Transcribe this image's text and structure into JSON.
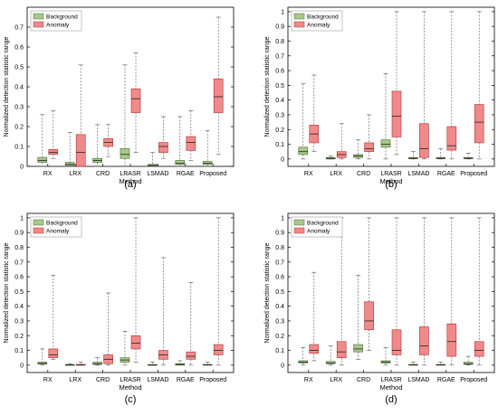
{
  "panel_order": [
    "a",
    "b",
    "c",
    "d"
  ],
  "colors": {
    "background_fill": "#a9c98b",
    "background_stroke": "#4d6b33",
    "anomaly_fill": "#f08a8a",
    "anomaly_stroke": "#b03030",
    "median": "#222222",
    "whisker": "#555555",
    "axis": "#000000"
  },
  "chart_data": [
    {
      "type": "box",
      "panel_label": "(a)",
      "xlabel": "Method",
      "ylabel": "Normalized detection statistic range",
      "ylim": [
        0,
        0.8
      ],
      "yticks": [
        "0",
        "0.1",
        "0.2",
        "0.3",
        "0.4",
        "0.5",
        "0.6",
        "0.7"
      ],
      "ytick_values": [
        0,
        0.1,
        0.2,
        0.3,
        0.4,
        0.5,
        0.6,
        0.7
      ],
      "legend": {
        "position": "top-left",
        "entries": [
          "Background",
          "Anomaly"
        ]
      },
      "categories": [
        "RX",
        "LRX",
        "CRD",
        "LRASR",
        "LSMAD",
        "RGAE",
        "Proposed"
      ],
      "series": [
        {
          "name": "Background",
          "boxes": [
            {
              "min": 0.0,
              "q1": 0.02,
              "median": 0.03,
              "q3": 0.045,
              "max": 0.26
            },
            {
              "min": 0.0,
              "q1": 0.005,
              "median": 0.01,
              "q3": 0.02,
              "max": 0.17
            },
            {
              "min": 0.0,
              "q1": 0.02,
              "median": 0.03,
              "q3": 0.04,
              "max": 0.21
            },
            {
              "min": 0.0,
              "q1": 0.04,
              "median": 0.06,
              "q3": 0.09,
              "max": 0.51
            },
            {
              "min": 0.0,
              "q1": 0.003,
              "median": 0.005,
              "q3": 0.01,
              "max": 0.07
            },
            {
              "min": 0.0,
              "q1": 0.01,
              "median": 0.015,
              "q3": 0.03,
              "max": 0.25
            },
            {
              "min": 0.0,
              "q1": 0.01,
              "median": 0.015,
              "q3": 0.025,
              "max": 0.18
            }
          ]
        },
        {
          "name": "Anomaly",
          "boxes": [
            {
              "min": 0.04,
              "q1": 0.06,
              "median": 0.07,
              "q3": 0.085,
              "max": 0.28
            },
            {
              "min": 0.0,
              "q1": 0.0,
              "median": 0.07,
              "q3": 0.16,
              "max": 0.51
            },
            {
              "min": 0.05,
              "q1": 0.1,
              "median": 0.12,
              "q3": 0.14,
              "max": 0.21
            },
            {
              "min": 0.07,
              "q1": 0.27,
              "median": 0.34,
              "q3": 0.39,
              "max": 0.57
            },
            {
              "min": 0.04,
              "q1": 0.07,
              "median": 0.1,
              "q3": 0.12,
              "max": 0.25
            },
            {
              "min": 0.03,
              "q1": 0.08,
              "median": 0.12,
              "q3": 0.15,
              "max": 0.28
            },
            {
              "min": 0.06,
              "q1": 0.27,
              "median": 0.35,
              "q3": 0.44,
              "max": 0.75
            }
          ]
        }
      ]
    },
    {
      "type": "box",
      "panel_label": "(b)",
      "xlabel": "Method",
      "ylabel": "Normalized detection statistic range",
      "ylim": [
        -0.05,
        1.03
      ],
      "yticks": [
        "0",
        "0.1",
        "0.2",
        "0.3",
        "0.4",
        "0.5",
        "0.6",
        "0.7",
        "0.8",
        "0.9",
        "1"
      ],
      "ytick_values": [
        0,
        0.1,
        0.2,
        0.3,
        0.4,
        0.5,
        0.6,
        0.7,
        0.8,
        0.9,
        1
      ],
      "legend": {
        "position": "top-left",
        "entries": [
          "Background",
          "Anomaly"
        ]
      },
      "categories": [
        "RX",
        "LRX",
        "CRD",
        "LRASR",
        "LSMAD",
        "RGAE",
        "Proposed"
      ],
      "series": [
        {
          "name": "Background",
          "boxes": [
            {
              "min": 0.0,
              "q1": 0.03,
              "median": 0.05,
              "q3": 0.08,
              "max": 0.51
            },
            {
              "min": 0.0,
              "q1": 0.0,
              "median": 0.005,
              "q3": 0.01,
              "max": 0.02
            },
            {
              "min": 0.0,
              "q1": 0.01,
              "median": 0.02,
              "q3": 0.03,
              "max": 0.13
            },
            {
              "min": 0.0,
              "q1": 0.08,
              "median": 0.1,
              "q3": 0.13,
              "max": 0.58
            },
            {
              "min": 0.0,
              "q1": 0.002,
              "median": 0.005,
              "q3": 0.01,
              "max": 0.05
            },
            {
              "min": 0.0,
              "q1": 0.002,
              "median": 0.005,
              "q3": 0.01,
              "max": 0.07
            },
            {
              "min": 0.0,
              "q1": 0.002,
              "median": 0.005,
              "q3": 0.01,
              "max": 0.04
            }
          ]
        },
        {
          "name": "Anomaly",
          "boxes": [
            {
              "min": 0.05,
              "q1": 0.11,
              "median": 0.17,
              "q3": 0.23,
              "max": 0.57
            },
            {
              "min": 0.0,
              "q1": 0.01,
              "median": 0.03,
              "q3": 0.05,
              "max": 0.24
            },
            {
              "min": 0.0,
              "q1": 0.05,
              "median": 0.07,
              "q3": 0.11,
              "max": 0.3
            },
            {
              "min": 0.03,
              "q1": 0.15,
              "median": 0.29,
              "q3": 0.46,
              "max": 1.0
            },
            {
              "min": 0.0,
              "q1": 0.01,
              "median": 0.07,
              "q3": 0.24,
              "max": 1.0
            },
            {
              "min": 0.0,
              "q1": 0.06,
              "median": 0.09,
              "q3": 0.22,
              "max": 1.0
            },
            {
              "min": 0.0,
              "q1": 0.11,
              "median": 0.25,
              "q3": 0.37,
              "max": 1.0
            }
          ]
        }
      ]
    },
    {
      "type": "box",
      "panel_label": "(c)",
      "xlabel": "Method",
      "ylabel": "Normalized detection statistic range",
      "ylim": [
        -0.05,
        1.03
      ],
      "yticks": [
        "0",
        "0.1",
        "0.2",
        "0.3",
        "0.4",
        "0.5",
        "0.6",
        "0.7",
        "0.8",
        "0.9",
        "1"
      ],
      "ytick_values": [
        0,
        0.1,
        0.2,
        0.3,
        0.4,
        0.5,
        0.6,
        0.7,
        0.8,
        0.9,
        1
      ],
      "legend": {
        "position": "top-left",
        "entries": [
          "Background",
          "Anomaly"
        ]
      },
      "categories": [
        "RX",
        "LRX",
        "CRD",
        "LRASR",
        "LSMAD",
        "RGAE",
        "Proposed"
      ],
      "series": [
        {
          "name": "Background",
          "boxes": [
            {
              "min": 0.0,
              "q1": 0.007,
              "median": 0.012,
              "q3": 0.02,
              "max": 0.11
            },
            {
              "min": 0.0,
              "q1": 0.0,
              "median": 0.002,
              "q3": 0.004,
              "max": 0.01
            },
            {
              "min": 0.0,
              "q1": 0.005,
              "median": 0.01,
              "q3": 0.02,
              "max": 0.05
            },
            {
              "min": 0.0,
              "q1": 0.02,
              "median": 0.035,
              "q3": 0.05,
              "max": 0.23
            },
            {
              "min": 0.0,
              "q1": 0.0,
              "median": 0.002,
              "q3": 0.004,
              "max": 0.02
            },
            {
              "min": 0.0,
              "q1": 0.0,
              "median": 0.005,
              "q3": 0.01,
              "max": 0.03
            },
            {
              "min": 0.0,
              "q1": 0.0,
              "median": 0.002,
              "q3": 0.005,
              "max": 0.02
            }
          ]
        },
        {
          "name": "Anomaly",
          "boxes": [
            {
              "min": 0.04,
              "q1": 0.05,
              "median": 0.07,
              "q3": 0.11,
              "max": 0.61
            },
            {
              "min": 0.0,
              "q1": 0.0,
              "median": 0.002,
              "q3": 0.005,
              "max": 0.02
            },
            {
              "min": 0.0,
              "q1": 0.01,
              "median": 0.04,
              "q3": 0.07,
              "max": 0.49
            },
            {
              "min": 0.02,
              "q1": 0.11,
              "median": 0.15,
              "q3": 0.2,
              "max": 1.0
            },
            {
              "min": 0.0,
              "q1": 0.04,
              "median": 0.07,
              "q3": 0.1,
              "max": 0.73
            },
            {
              "min": 0.0,
              "q1": 0.04,
              "median": 0.06,
              "q3": 0.09,
              "max": 0.56
            },
            {
              "min": 0.0,
              "q1": 0.07,
              "median": 0.1,
              "q3": 0.14,
              "max": 1.0
            }
          ]
        }
      ]
    },
    {
      "type": "box",
      "panel_label": "(d)",
      "xlabel": "Method",
      "ylabel": "Normalized detection statistic range",
      "ylim": [
        -0.05,
        1.03
      ],
      "yticks": [
        "0",
        "0.1",
        "0.2",
        "0.3",
        "0.4",
        "0.5",
        "0.6",
        "0.7",
        "0.8",
        "0.9",
        "1"
      ],
      "ytick_values": [
        0,
        0.1,
        0.2,
        0.3,
        0.4,
        0.5,
        0.6,
        0.7,
        0.8,
        0.9,
        1
      ],
      "legend": {
        "position": "top-left",
        "entries": [
          "Background",
          "Anomaly"
        ]
      },
      "categories": [
        "RX",
        "LRX",
        "CRD",
        "LRASR",
        "LSMAD",
        "RGAE",
        "Proposed"
      ],
      "series": [
        {
          "name": "Background",
          "boxes": [
            {
              "min": 0.0,
              "q1": 0.015,
              "median": 0.02,
              "q3": 0.03,
              "max": 0.12
            },
            {
              "min": 0.0,
              "q1": 0.01,
              "median": 0.015,
              "q3": 0.025,
              "max": 0.13
            },
            {
              "min": 0.04,
              "q1": 0.09,
              "median": 0.11,
              "q3": 0.14,
              "max": 0.61
            },
            {
              "min": 0.0,
              "q1": 0.015,
              "median": 0.02,
              "q3": 0.03,
              "max": 0.12
            },
            {
              "min": 0.0,
              "q1": 0.0,
              "median": 0.002,
              "q3": 0.005,
              "max": 0.02
            },
            {
              "min": 0.0,
              "q1": 0.0,
              "median": 0.002,
              "q3": 0.005,
              "max": 0.02
            },
            {
              "min": 0.0,
              "q1": 0.005,
              "median": 0.01,
              "q3": 0.02,
              "max": 0.06
            }
          ]
        },
        {
          "name": "Anomaly",
          "boxes": [
            {
              "min": 0.03,
              "q1": 0.08,
              "median": 0.1,
              "q3": 0.14,
              "max": 0.63
            },
            {
              "min": 0.0,
              "q1": 0.05,
              "median": 0.09,
              "q3": 0.16,
              "max": 1.0
            },
            {
              "min": 0.1,
              "q1": 0.24,
              "median": 0.3,
              "q3": 0.43,
              "max": 1.0
            },
            {
              "min": 0.0,
              "q1": 0.07,
              "median": 0.1,
              "q3": 0.24,
              "max": 1.0
            },
            {
              "min": 0.0,
              "q1": 0.07,
              "median": 0.13,
              "q3": 0.26,
              "max": 1.0
            },
            {
              "min": 0.0,
              "q1": 0.06,
              "median": 0.16,
              "q3": 0.28,
              "max": 1.0
            },
            {
              "min": 0.0,
              "q1": 0.06,
              "median": 0.1,
              "q3": 0.16,
              "max": 1.0
            }
          ]
        }
      ]
    }
  ]
}
